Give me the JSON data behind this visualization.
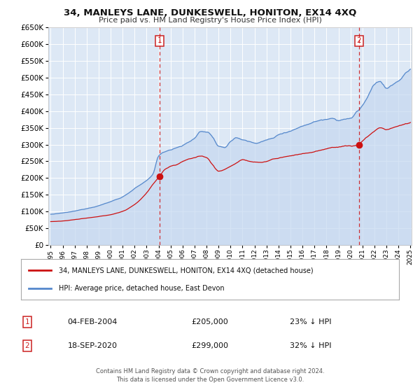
{
  "title": "34, MANLEYS LANE, DUNKESWELL, HONITON, EX14 4XQ",
  "subtitle": "Price paid vs. HM Land Registry's House Price Index (HPI)",
  "red_label": "34, MANLEYS LANE, DUNKESWELL, HONITON, EX14 4XQ (detached house)",
  "blue_label": "HPI: Average price, detached house, East Devon",
  "marker1_date_display": "04-FEB-2004",
  "marker1_price": 205000,
  "marker1_pct": "23%",
  "marker2_date_display": "18-SEP-2020",
  "marker2_price": 299000,
  "marker2_pct": "32%",
  "footnote1": "Contains HM Land Registry data © Crown copyright and database right 2024.",
  "footnote2": "This data is licensed under the Open Government Licence v3.0.",
  "ylim": [
    0,
    650000
  ],
  "yticks": [
    0,
    50000,
    100000,
    150000,
    200000,
    250000,
    300000,
    350000,
    400000,
    450000,
    500000,
    550000,
    600000,
    650000
  ],
  "year_start": 1995,
  "year_end": 2025,
  "fig_bg": "#ffffff",
  "plot_bg": "#dde8f5",
  "red_color": "#cc1111",
  "blue_color": "#5588cc",
  "blue_fill": "#c5d8f0",
  "grid_color": "#ffffff",
  "box_color": "#cc2222",
  "marker1_x": 2004.083,
  "marker2_x": 2020.708
}
